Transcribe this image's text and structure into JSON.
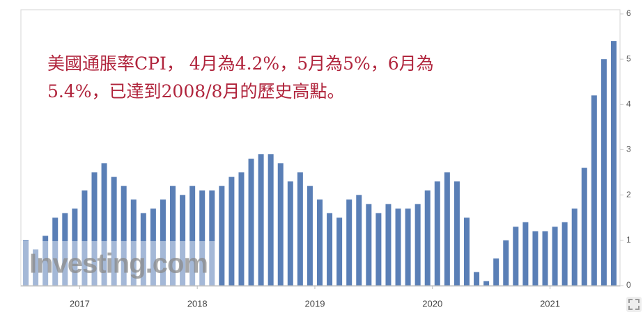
{
  "chart_data": {
    "type": "bar",
    "annotation": [
      "美國通脹率CPI， 4月為4.2%，5月為5%，6月為",
      "5.4%，已達到2008/8月的歷史高點。"
    ],
    "watermark": "Investing.com",
    "categories": [
      null,
      null,
      null,
      null,
      null,
      null,
      "2017",
      null,
      null,
      null,
      null,
      null,
      null,
      null,
      null,
      null,
      null,
      null,
      "2018",
      null,
      null,
      null,
      null,
      null,
      null,
      null,
      null,
      null,
      null,
      null,
      "2019",
      null,
      null,
      null,
      null,
      null,
      null,
      null,
      null,
      null,
      null,
      null,
      "2020",
      null,
      null,
      null,
      null,
      null,
      null,
      null,
      null,
      null,
      null,
      null,
      "2021",
      null,
      null,
      null,
      null,
      null,
      null
    ],
    "values": [
      1.0,
      0.8,
      1.1,
      1.5,
      1.6,
      1.7,
      2.1,
      2.5,
      2.7,
      2.4,
      2.2,
      1.9,
      1.6,
      1.7,
      1.9,
      2.2,
      2.0,
      2.2,
      2.1,
      2.1,
      2.2,
      2.4,
      2.5,
      2.8,
      2.9,
      2.9,
      2.7,
      2.3,
      2.5,
      2.2,
      1.9,
      1.6,
      1.5,
      1.9,
      2.0,
      1.8,
      1.6,
      1.8,
      1.7,
      1.7,
      1.8,
      2.1,
      2.3,
      2.5,
      2.3,
      1.5,
      0.3,
      0.1,
      0.6,
      1.0,
      1.3,
      1.4,
      1.2,
      1.2,
      1.3,
      1.4,
      1.7,
      2.6,
      4.2,
      5.0,
      5.4
    ],
    "color": "#5a7fb6",
    "ylim": [
      0,
      6
    ],
    "yticks": [
      0,
      1,
      2,
      3,
      4,
      5,
      6
    ],
    "y_axis_side": "right"
  }
}
